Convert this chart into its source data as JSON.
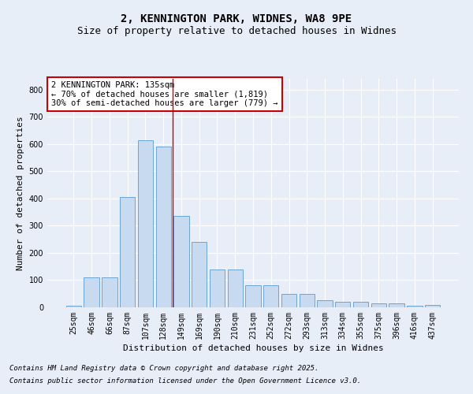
{
  "title_line1": "2, KENNINGTON PARK, WIDNES, WA8 9PE",
  "title_line2": "Size of property relative to detached houses in Widnes",
  "xlabel": "Distribution of detached houses by size in Widnes",
  "ylabel": "Number of detached properties",
  "categories": [
    "25sqm",
    "46sqm",
    "66sqm",
    "87sqm",
    "107sqm",
    "128sqm",
    "149sqm",
    "169sqm",
    "190sqm",
    "210sqm",
    "231sqm",
    "252sqm",
    "272sqm",
    "293sqm",
    "313sqm",
    "334sqm",
    "355sqm",
    "375sqm",
    "396sqm",
    "416sqm",
    "437sqm"
  ],
  "values": [
    5,
    110,
    110,
    405,
    615,
    590,
    335,
    240,
    140,
    140,
    80,
    80,
    50,
    50,
    25,
    20,
    20,
    15,
    15,
    5,
    10
  ],
  "bar_color": "#c8daf0",
  "bar_edge_color": "#5b9bd5",
  "vline_x": 5.5,
  "vline_color": "#cc0000",
  "annotation_text": "2 KENNINGTON PARK: 135sqm\n← 70% of detached houses are smaller (1,819)\n30% of semi-detached houses are larger (779) →",
  "annotation_box_color": "#ffffff",
  "annotation_box_edge": "#cc0000",
  "ylim": [
    0,
    840
  ],
  "yticks": [
    0,
    100,
    200,
    300,
    400,
    500,
    600,
    700,
    800
  ],
  "background_color": "#e8eef8",
  "grid_color": "#ffffff",
  "footer_line1": "Contains HM Land Registry data © Crown copyright and database right 2025.",
  "footer_line2": "Contains public sector information licensed under the Open Government Licence v3.0.",
  "title_fontsize": 10,
  "subtitle_fontsize": 9,
  "axis_label_fontsize": 8,
  "tick_fontsize": 7,
  "annotation_fontsize": 7.5,
  "footer_fontsize": 6.5
}
